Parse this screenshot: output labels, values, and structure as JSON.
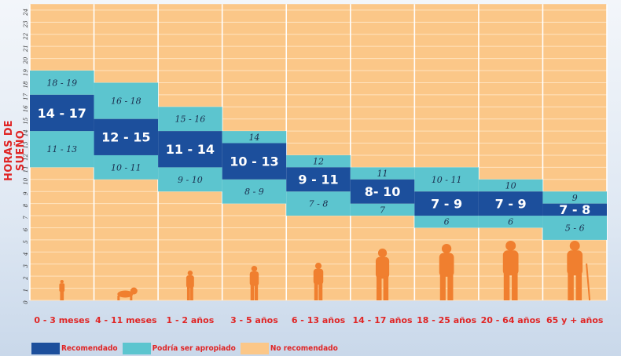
{
  "colors": {
    "recommended": "#1c4f9c",
    "maybe": "#5cc5cf",
    "not_recommended": "#fbc788",
    "label_red": "#e02525",
    "silhouette": "#f07f2f"
  },
  "chart_data": {
    "type": "bar",
    "ylabel": "HORAS DE SUEÑO",
    "ylim": [
      0,
      24
    ],
    "y_ticks": [
      "0",
      "1",
      "2",
      "3",
      "4",
      "5",
      "6",
      "7",
      "8",
      "9",
      "10",
      "11",
      "12",
      "13",
      "14",
      "15",
      "16",
      "17",
      "18",
      "19",
      "20",
      "21",
      "22",
      "23",
      "24"
    ],
    "grid": true,
    "categories": [
      "0 - 3 meses",
      "4 - 11 meses",
      "1 - 2 años",
      "3 - 5 años",
      "6 - 13 años",
      "14 - 17 años",
      "18 - 25 años",
      "20 - 64 años",
      "65 y + años"
    ],
    "legend_placement": "bottom-left",
    "series": [
      {
        "name": "Recomendado",
        "color_key": "recommended",
        "low": [
          14,
          12,
          11,
          10,
          9,
          8,
          7,
          7,
          7
        ],
        "high": [
          17,
          15,
          14,
          13,
          11,
          10,
          9,
          9,
          8
        ],
        "labels": [
          "14 - 17",
          "12 - 15",
          "11 - 14",
          "10 - 13",
          "9 - 11",
          "8- 10",
          "7 - 9",
          "7 - 9",
          "7 - 8"
        ]
      },
      {
        "name": "Podría ser apropiado",
        "color_key": "maybe",
        "upper_low": [
          17,
          15,
          14,
          13,
          11,
          10,
          9,
          9,
          8
        ],
        "upper_high": [
          19,
          18,
          16,
          14,
          12,
          11,
          11,
          10,
          9
        ],
        "upper_labels": [
          "18 - 19",
          "16 - 18",
          "15 - 16",
          "14",
          "12",
          "11",
          "10 - 11",
          "10",
          "9"
        ],
        "lower_low": [
          11,
          10,
          9,
          8,
          7,
          7,
          6,
          6,
          5
        ],
        "lower_high": [
          14,
          12,
          11,
          10,
          9,
          8,
          7,
          7,
          7
        ],
        "lower_labels": [
          "11 - 13",
          "10 - 11",
          "9 - 10",
          "8 - 9",
          "7 - 8",
          "7",
          "6",
          "6",
          "5 - 6"
        ]
      },
      {
        "name": "No recomendado",
        "color_key": "not_recommended"
      }
    ],
    "figures": [
      "baby-icon",
      "crawling-baby-icon",
      "toddler-icon",
      "child-icon",
      "kid-playing-icon",
      "teen-icon",
      "young-adult-icon",
      "adult-icon",
      "elderly-icon"
    ]
  }
}
